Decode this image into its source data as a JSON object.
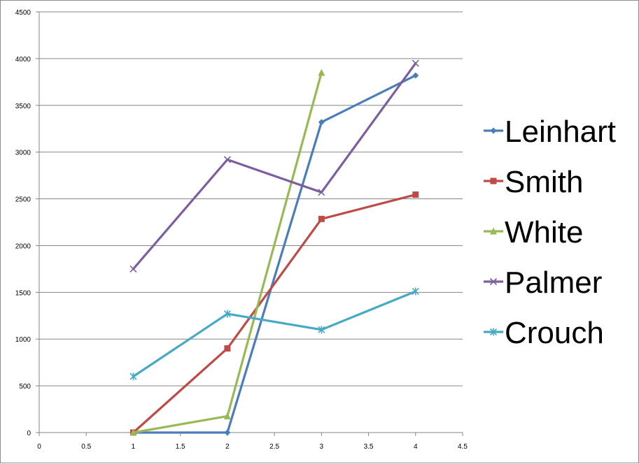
{
  "chart_data": {
    "type": "line",
    "title": "",
    "xlabel": "",
    "ylabel": "",
    "xlim": [
      0,
      4.5
    ],
    "ylim": [
      0,
      4500
    ],
    "x_ticks": [
      "0",
      "0.5",
      "1",
      "1.5",
      "2",
      "2.5",
      "3",
      "3.5",
      "4",
      "4.5"
    ],
    "y_ticks": [
      "0",
      "500",
      "1000",
      "1500",
      "2000",
      "2500",
      "3000",
      "3500",
      "4000",
      "4500"
    ],
    "grid": "horizontal major gridlines",
    "legend_position": "right",
    "series": [
      {
        "name": "Leinhart",
        "color": "#4a7ebb",
        "marker": "diamond",
        "x": [
          1,
          2,
          3,
          4
        ],
        "y": [
          0,
          0,
          3320,
          3820
        ]
      },
      {
        "name": "Smith",
        "color": "#be4b48",
        "marker": "square",
        "x": [
          1,
          2,
          3,
          4
        ],
        "y": [
          0,
          900,
          2285,
          2545
        ]
      },
      {
        "name": "White",
        "color": "#98b954",
        "marker": "triangle",
        "x": [
          1,
          2,
          3
        ],
        "y": [
          0,
          175,
          3850
        ]
      },
      {
        "name": "Palmer",
        "color": "#7d5fa0",
        "marker": "x",
        "x": [
          1,
          2,
          3,
          4
        ],
        "y": [
          1750,
          2920,
          2570,
          3950
        ]
      },
      {
        "name": "Crouch",
        "color": "#46aac5",
        "marker": "star",
        "x": [
          1,
          2,
          3,
          4
        ],
        "y": [
          600,
          1270,
          1100,
          1510
        ]
      }
    ]
  }
}
